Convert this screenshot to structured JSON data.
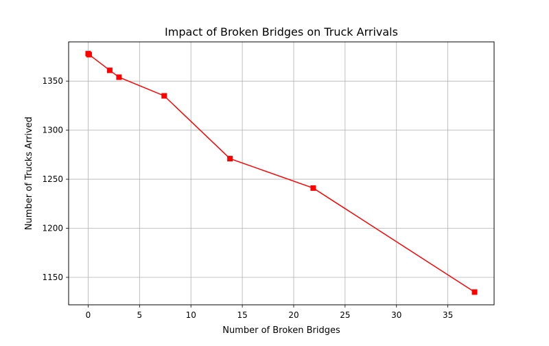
{
  "chart_data": {
    "type": "line",
    "title": "Impact of Broken Bridges on Truck Arrivals",
    "xlabel": "Number of Broken Bridges",
    "ylabel": "Number of Trucks Arrived",
    "xlim": [
      -1.9,
      39.5
    ],
    "ylim": [
      1122,
      1390
    ],
    "xticks": [
      0,
      5,
      10,
      15,
      20,
      25,
      30,
      35
    ],
    "yticks": [
      1150,
      1200,
      1250,
      1300,
      1350
    ],
    "grid": true,
    "legend": "none",
    "marker": "square",
    "series": [
      {
        "color": "#ff0000",
        "x": [
          0,
          0.1,
          2.1,
          3.0,
          7.4,
          13.8,
          21.9,
          37.6
        ],
        "y": [
          1378,
          1377,
          1361,
          1354,
          1335,
          1271,
          1241,
          1135
        ]
      }
    ]
  }
}
